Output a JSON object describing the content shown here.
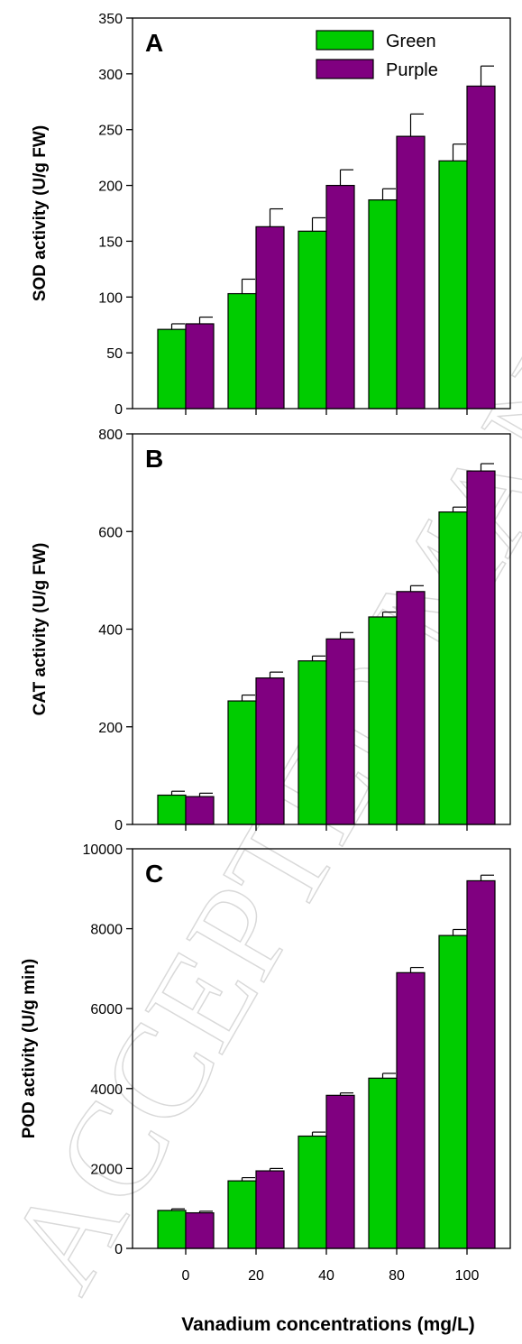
{
  "watermark": "ACCEPTED MANUSCRIPT",
  "colors": {
    "green": "#00CC00",
    "purple": "#800080"
  },
  "chart_data": [
    {
      "type": "bar",
      "panel_label": "A",
      "ylabel": "SOD activity (U/g FW)",
      "ylim": [
        0,
        350
      ],
      "yticks": [
        0,
        50,
        100,
        150,
        200,
        250,
        300,
        350
      ],
      "categories": [
        "0",
        "20",
        "40",
        "80",
        "100"
      ],
      "legend": {
        "placement": "top-right"
      },
      "series": [
        {
          "name": "Green",
          "color": "#00CC00",
          "values": [
            71,
            103,
            159,
            187,
            222
          ],
          "errors": [
            5,
            13,
            12,
            10,
            15
          ]
        },
        {
          "name": "Purple",
          "color": "#800080",
          "values": [
            76,
            163,
            200,
            244,
            289
          ],
          "errors": [
            6,
            16,
            14,
            20,
            18
          ]
        }
      ]
    },
    {
      "type": "bar",
      "panel_label": "B",
      "ylabel": "CAT activity (U/g FW)",
      "ylim": [
        0,
        800
      ],
      "yticks": [
        0,
        200,
        400,
        600,
        800
      ],
      "categories": [
        "0",
        "20",
        "40",
        "80",
        "100"
      ],
      "series": [
        {
          "name": "Green",
          "color": "#00CC00",
          "values": [
            60,
            253,
            335,
            425,
            640
          ],
          "errors": [
            8,
            12,
            10,
            10,
            10
          ]
        },
        {
          "name": "Purple",
          "color": "#800080",
          "values": [
            57,
            300,
            380,
            477,
            724
          ],
          "errors": [
            7,
            12,
            13,
            12,
            15
          ]
        }
      ]
    },
    {
      "type": "bar",
      "panel_label": "C",
      "ylabel": "POD activity (U/g min)",
      "xlabel": "Vanadium concentrations (mg/L)",
      "ylim": [
        0,
        10000
      ],
      "yticks": [
        0,
        2000,
        4000,
        6000,
        8000,
        10000
      ],
      "categories": [
        "0",
        "20",
        "40",
        "80",
        "100"
      ],
      "series": [
        {
          "name": "Green",
          "color": "#00CC00",
          "values": [
            950,
            1690,
            2810,
            4260,
            7830
          ],
          "errors": [
            40,
            80,
            100,
            120,
            150
          ]
        },
        {
          "name": "Purple",
          "color": "#800080",
          "values": [
            890,
            1940,
            3830,
            6900,
            9200
          ],
          "errors": [
            40,
            60,
            60,
            130,
            140
          ]
        }
      ]
    }
  ]
}
